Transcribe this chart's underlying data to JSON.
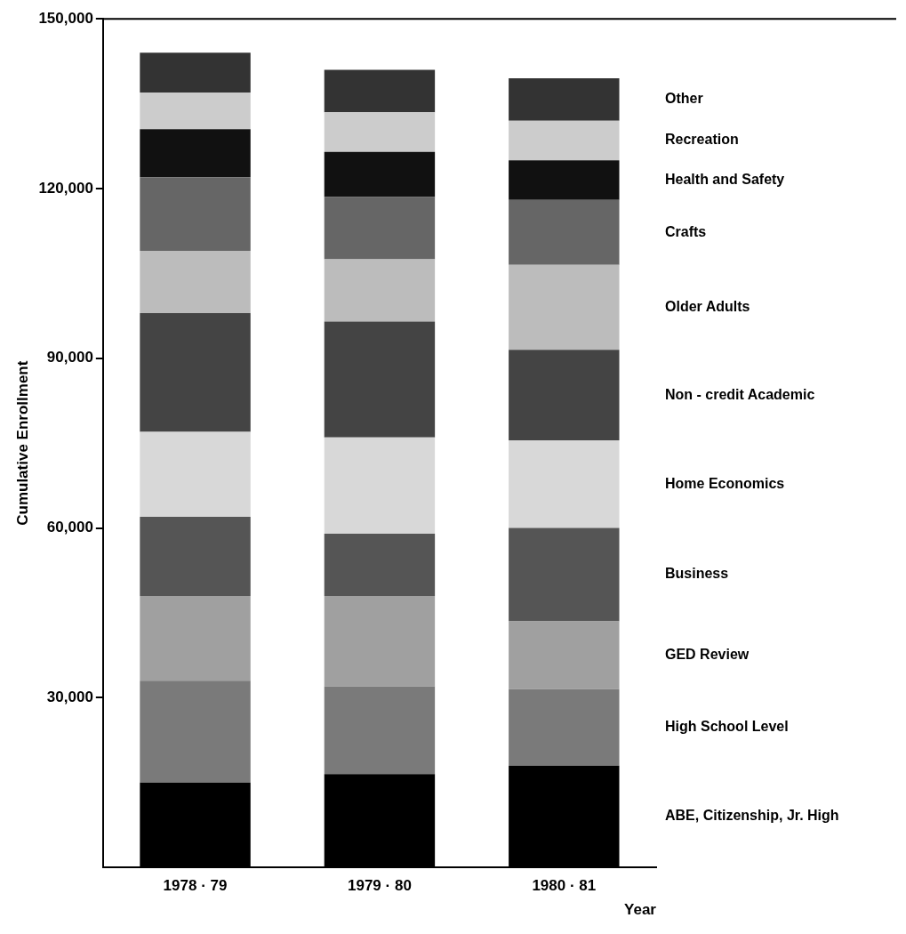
{
  "chart_data": {
    "type": "bar",
    "stacked": true,
    "xlabel": "Year",
    "ylabel": "Cumulative Enrollment",
    "categories": [
      "1978 · 79",
      "1979 · 80",
      "1980 · 81"
    ],
    "ylim": [
      0,
      150000
    ],
    "yticks": [
      {
        "value": 30000,
        "label": "30,000"
      },
      {
        "value": 60000,
        "label": "60,000"
      },
      {
        "value": 90000,
        "label": "90,000"
      },
      {
        "value": 120000,
        "label": "120,000"
      },
      {
        "value": 150000,
        "label": "150,000"
      }
    ],
    "series": [
      {
        "name": "ABE, Citizenship, Jr. High",
        "color": "#000000",
        "values": [
          15000,
          16500,
          18000
        ]
      },
      {
        "name": "High School Level",
        "color": "#7a7a7a",
        "values": [
          18000,
          15500,
          13500
        ]
      },
      {
        "name": "GED Review",
        "color": "#a0a0a0",
        "values": [
          15000,
          16000,
          12000
        ]
      },
      {
        "name": "Business",
        "color": "#555555",
        "values": [
          14000,
          11000,
          16500
        ]
      },
      {
        "name": "Home Economics",
        "color": "#d8d8d8",
        "values": [
          15000,
          17000,
          15500
        ]
      },
      {
        "name": "Non - credit Academic",
        "color": "#444444",
        "values": [
          21000,
          20500,
          16000
        ]
      },
      {
        "name": "Older Adults",
        "color": "#bcbcbc",
        "values": [
          11000,
          11000,
          15000
        ]
      },
      {
        "name": "Crafts",
        "color": "#666666",
        "values": [
          13000,
          11000,
          11500
        ]
      },
      {
        "name": "Health and Safety",
        "color": "#111111",
        "values": [
          8500,
          8000,
          7000
        ]
      },
      {
        "name": "Recreation",
        "color": "#cccccc",
        "values": [
          6500,
          7000,
          7000
        ]
      },
      {
        "name": "Other",
        "color": "#333333",
        "values": [
          7000,
          7500,
          7500
        ]
      }
    ]
  }
}
